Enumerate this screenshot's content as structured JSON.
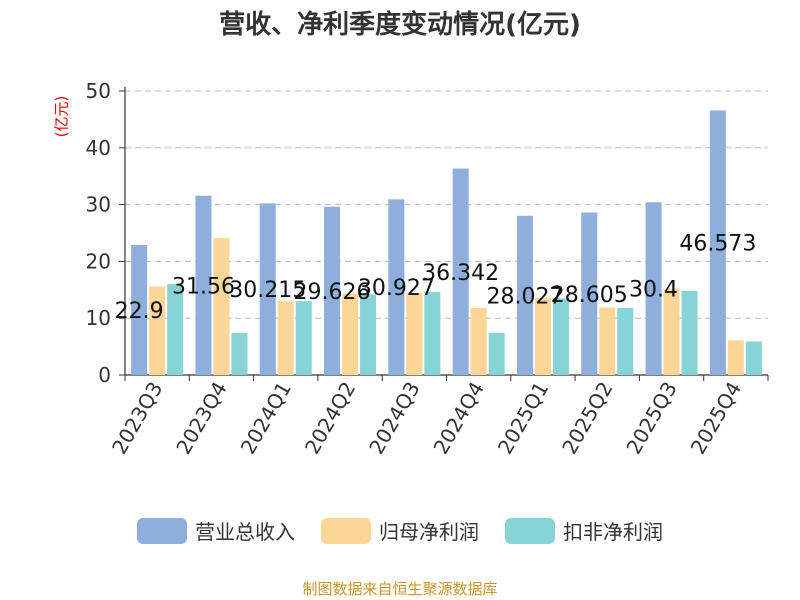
{
  "chart_data": {
    "type": "bar",
    "title": "营收、净利季度变动情况(亿元)",
    "ylabel": "(亿元)",
    "ylim": [
      0,
      50
    ],
    "yticks": [
      0,
      10,
      20,
      30,
      40,
      50
    ],
    "grid": true,
    "legend_position": "bottom",
    "categories": [
      "2023Q3",
      "2023Q4",
      "2024Q1",
      "2024Q2",
      "2024Q3",
      "2024Q4",
      "2025Q1",
      "2025Q2",
      "2025Q3",
      "2025Q4"
    ],
    "series": [
      {
        "name": "营业总收入",
        "color": "#8eaedc",
        "values": [
          22.9,
          31.56,
          30.215,
          29.626,
          30.927,
          36.342,
          28.027,
          28.605,
          30.4,
          46.573
        ],
        "labels": [
          "22.9",
          "31.56",
          "30.215",
          "29.626",
          "30.927",
          "36.342",
          "28.027",
          "28.605",
          "30.4",
          "46.573"
        ]
      },
      {
        "name": "归母净利润",
        "color": "#fdd597",
        "values": [
          15.6,
          24.1,
          13.0,
          14.3,
          14.5,
          11.8,
          13.6,
          11.9,
          15.2,
          6.1
        ]
      },
      {
        "name": "扣非净利润",
        "color": "#86d4d6",
        "values": [
          16.0,
          7.4,
          13.0,
          14.2,
          14.6,
          7.4,
          13.5,
          11.8,
          14.8,
          5.9
        ]
      }
    ]
  },
  "source": "制图数据来自恒生聚源数据库"
}
